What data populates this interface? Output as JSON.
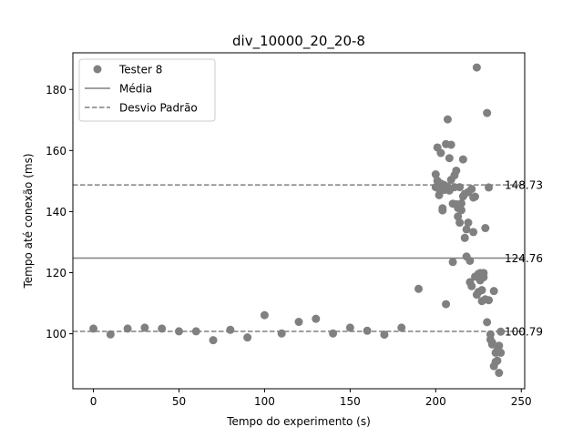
{
  "chart_data": {
    "type": "scatter",
    "title": "div_10000_20_20-8",
    "xlabel": "Tempo do experimento (s)",
    "ylabel": "Tempo até conexão (ms)",
    "xlim": [
      -12,
      252
    ],
    "ylim": [
      82,
      192
    ],
    "xticks": [
      "0",
      "50",
      "100",
      "150",
      "200",
      "250"
    ],
    "yticks": [
      "100",
      "120",
      "140",
      "160",
      "180"
    ],
    "grid": false,
    "legend_position": "top-left",
    "legend": {
      "series_label": "Tester 8",
      "mean_label": "Média",
      "std_label": "Desvio Padrão"
    },
    "colors": {
      "points": "#808080",
      "lines": "#808080",
      "frame": "#000000"
    },
    "lines": {
      "mean": {
        "value": 124.76,
        "label": "124.76",
        "style": "solid"
      },
      "upper": {
        "value": 148.73,
        "label": "148.73",
        "style": "dashed"
      },
      "lower": {
        "value": 100.79,
        "label": "100.79",
        "style": "dashed"
      }
    },
    "series": [
      {
        "name": "Tester 8",
        "x": [
          0,
          10,
          20,
          30,
          40,
          50,
          60,
          70,
          80,
          90,
          100,
          110,
          120,
          130,
          140,
          150,
          160,
          170,
          180,
          190,
          200,
          200,
          201,
          201,
          202,
          202,
          203,
          203,
          204,
          204,
          205,
          205,
          206,
          206,
          207,
          207,
          208,
          208,
          209,
          209,
          210,
          210,
          211,
          211,
          212,
          212,
          213,
          213,
          214,
          214,
          215,
          215,
          216,
          216,
          217,
          217,
          218,
          218,
          219,
          219,
          220,
          220,
          221,
          221,
          222,
          222,
          223,
          223,
          224,
          224,
          225,
          225,
          226,
          226,
          227,
          227,
          228,
          228,
          229,
          229,
          230,
          230,
          231,
          231,
          232,
          232,
          233,
          233,
          234,
          234,
          235,
          235,
          236,
          236,
          237,
          237,
          238,
          238
        ],
        "y": [
          101.7,
          99.8,
          101.7,
          102.0,
          101.7,
          100.8,
          100.8,
          97.9,
          101.3,
          98.8,
          106.1,
          100.1,
          103.9,
          104.9,
          100.1,
          102.0,
          101.0,
          99.7,
          102.0,
          114.7,
          148.0,
          152.2,
          161.0,
          150.1,
          147.4,
          145.4,
          159.2,
          149.2,
          140.4,
          141.1,
          148.7,
          147.1,
          162.1,
          109.7,
          170.2,
          148.1,
          157.5,
          146.9,
          161.9,
          150.4,
          123.5,
          142.6,
          151.9,
          148.0,
          153.4,
          142.4,
          141.2,
          138.4,
          136.4,
          148.0,
          140.5,
          142.7,
          145.0,
          157.1,
          131.4,
          145.8,
          125.3,
          134.2,
          136.4,
          146.4,
          123.9,
          116.9,
          115.6,
          147.4,
          133.3,
          144.6,
          144.9,
          118.7,
          112.8,
          187.2,
          119.6,
          113.7,
          117.5,
          119.9,
          110.7,
          114.3,
          119.9,
          118.5,
          111.3,
          134.6,
          172.3,
          103.8,
          111.0,
          147.9,
          98.1,
          99.8,
          97.1,
          96.5,
          114.0,
          89.4,
          93.8,
          90.8,
          91.2,
          94.5,
          87.2,
          96.1,
          93.8,
          100.7
        ]
      }
    ]
  }
}
